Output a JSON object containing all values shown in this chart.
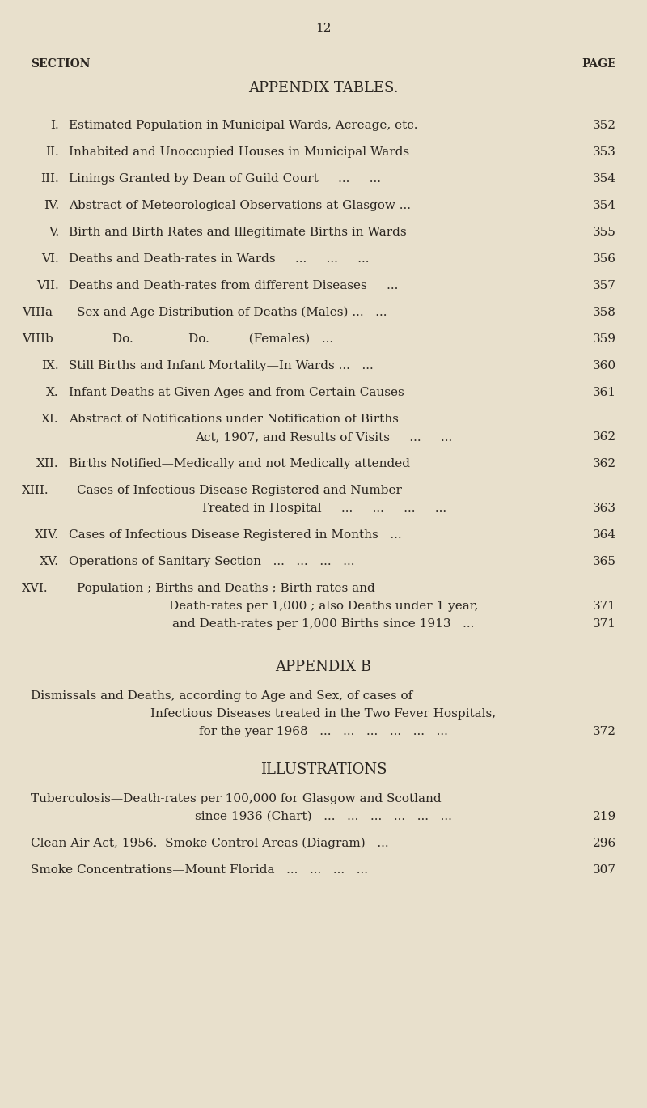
{
  "bg_color": "#e8e0cc",
  "text_color": "#2a2520",
  "page_number": "12",
  "header_left": "SECTION",
  "header_right": "PAGE",
  "appendix_tables_title": "APPENDIX TABLES.",
  "entries": [
    {
      "section": "I.",
      "text": "Estimated Population in Municipal Wards, Acreage, etc.",
      "page": "352",
      "multiline": false,
      "type": "normal"
    },
    {
      "section": "II.",
      "text": "Inhabited and Unoccupied Houses in Municipal Wards",
      "page": "353",
      "multiline": false,
      "type": "normal"
    },
    {
      "section": "III.",
      "text": "Linings Granted by Dean of Guild Court     ...     ...",
      "page": "354",
      "multiline": false,
      "type": "normal"
    },
    {
      "section": "IV.",
      "text": "Abstract of Meteorological Observations at Glasgow ...",
      "page": "354",
      "multiline": false,
      "type": "normal"
    },
    {
      "section": "V.",
      "text": "Birth and Birth Rates and Illegitimate Births in Wards",
      "page": "355",
      "multiline": false,
      "type": "normal"
    },
    {
      "section": "VI.",
      "text": "Deaths and Death-rates in Wards     ...     ...     ...",
      "page": "356",
      "multiline": false,
      "type": "normal"
    },
    {
      "section": "VII.",
      "text": "Deaths and Death-rates from different Diseases     ...",
      "page": "357",
      "multiline": false,
      "type": "normal"
    },
    {
      "section": "VIIIa",
      "text": "Sex and Age Distribution of Deaths (Males) ...   ...",
      "page": "358",
      "multiline": false,
      "type": "viii"
    },
    {
      "section": "VIIIb",
      "text": "         Do.              Do.          (Females)   ...",
      "page": "359",
      "multiline": false,
      "type": "viii"
    },
    {
      "section": "IX.",
      "text": "Still Births and Infant Mortality—In Wards ...   ...",
      "page": "360",
      "multiline": false,
      "type": "normal"
    },
    {
      "section": "X.",
      "text": "Infant Deaths at Given Ages and from Certain Causes",
      "page": "361",
      "multiline": false,
      "type": "normal"
    },
    {
      "section": "XI.",
      "text_line1": "Abstract of Notifications under Notification of Births",
      "text_line2": "Act, 1907, and Results of Visits     ...     ...",
      "page": "362",
      "multiline": true,
      "type": "normal"
    },
    {
      "section": "XII.",
      "text": "Births Notified—Medically and not Medically attended",
      "page": "362",
      "multiline": false,
      "type": "normal"
    },
    {
      "section": "XIII.",
      "text_line1": "Cases of Infectious Disease Registered and Number",
      "text_line2": "Treated in Hospital     ...     ...     ...     ...",
      "page": "363",
      "multiline": true,
      "type": "xiii"
    },
    {
      "section": "XIV.",
      "text": "Cases of Infectious Disease Registered in Months   ...",
      "page": "364",
      "multiline": false,
      "type": "normal"
    },
    {
      "section": "XV.",
      "text": "Operations of Sanitary Section   ...   ...   ...   ...",
      "page": "365",
      "multiline": false,
      "type": "normal"
    },
    {
      "section": "XVI.",
      "text_line1": "Population ; Births and Deaths ; Birth-rates and",
      "text_line2": "Death-rates per 1,000 ; also Deaths under 1 year,",
      "text_line3": "and Death-rates per 1,000 Births since 1913   ...",
      "page": "371",
      "multiline": true,
      "lines": 3,
      "type": "xvi"
    }
  ],
  "appendix_b_title": "APPENDIX B",
  "appendix_b_lines": [
    "Dismissals and Deaths, according to Age and Sex, of cases of",
    "Infectious Diseases treated in the Two Fever Hospitals,",
    "for the year 1968   ...   ...   ...   ...   ...   ..."
  ],
  "appendix_b_page": "372",
  "illustrations_title": "ILLUSTRATIONS",
  "illus_entries": [
    {
      "lines": [
        "Tuberculosis—Death-rates per 100,000 for Glasgow and Scotland",
        "since 1936 (Chart)   ...   ...   ...   ...   ...   ..."
      ],
      "page": "219"
    },
    {
      "lines": [
        "Clean Air Act, 1956.  Smoke Control Areas (Diagram)   ..."
      ],
      "page": "296"
    },
    {
      "lines": [
        "Smoke Concentrations—Mount Florida   ...   ...   ...   ..."
      ],
      "page": "307"
    }
  ]
}
